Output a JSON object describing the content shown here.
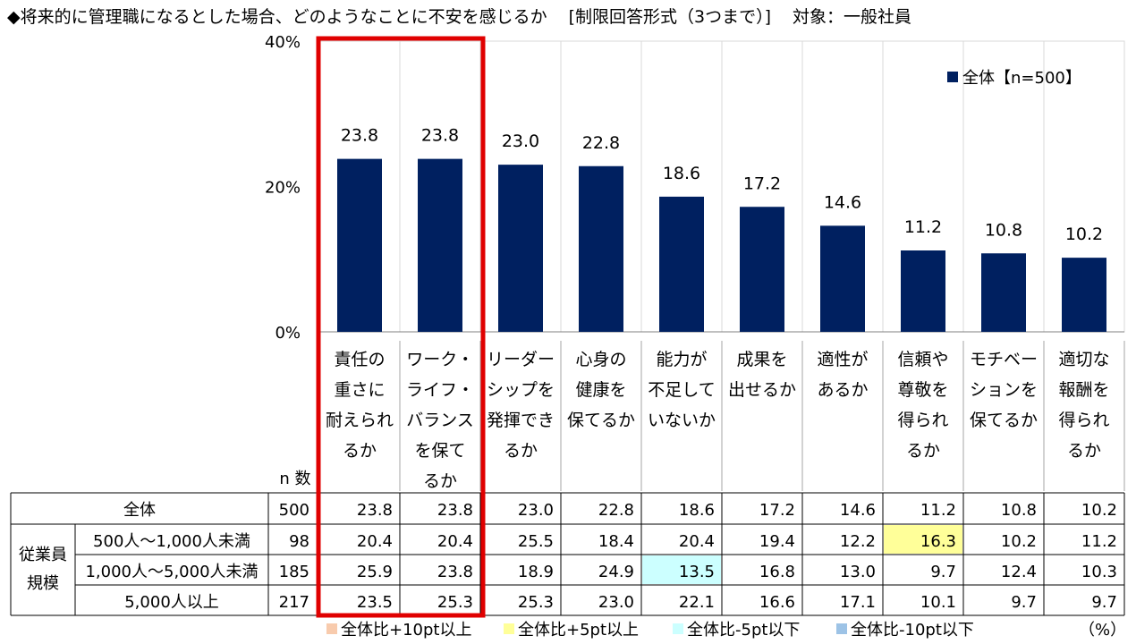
{
  "title": {
    "main": "◆将来的に管理職になるとした場合、どのようなことに不安を感じるか",
    "qtype": "[制限回答形式（3つまで）]",
    "target": "対象：一般社員"
  },
  "chart_data": {
    "type": "bar",
    "categories": [
      "責任の重さに耐えられるか",
      "ワーク・ライフ・バランスを保てるか",
      "リーダーシップを発揮できるか",
      "心身の健康を保てるか",
      "能力が不足していないか",
      "成果を出せるか",
      "適性があるか",
      "信頼や尊敬を得られるか",
      "モチベーションを保てるか",
      "適切な報酬を得られるか"
    ],
    "category_lines": [
      [
        "責任の",
        "重さに",
        "耐えられ",
        "るか"
      ],
      [
        "ワーク・",
        "ライフ・",
        "バランス",
        "を保て",
        "るか"
      ],
      [
        "リーダー",
        "シップを",
        "発揮でき",
        "るか"
      ],
      [
        "心身の",
        "健康を",
        "保てるか"
      ],
      [
        "能力が",
        "不足して",
        "いないか"
      ],
      [
        "成果を",
        "出せるか"
      ],
      [
        "適性が",
        "あるか"
      ],
      [
        "信頼や",
        "尊敬を",
        "得られ",
        "るか"
      ],
      [
        "モチベー",
        "ションを",
        "保てるか"
      ],
      [
        "適切な",
        "報酬を",
        "得られ",
        "るか"
      ]
    ],
    "series": [
      {
        "name": "全体【n=500】",
        "values": [
          23.8,
          23.8,
          23.0,
          22.8,
          18.6,
          17.2,
          14.6,
          11.2,
          10.8,
          10.2
        ]
      }
    ],
    "value_labels": [
      "23.8",
      "23.8",
      "23.0",
      "22.8",
      "18.6",
      "17.2",
      "14.6",
      "11.2",
      "10.8",
      "10.2"
    ],
    "ylim": [
      0,
      40
    ],
    "yticks": [
      "0%",
      "20%",
      "40%"
    ],
    "bar_color": "#002060",
    "legend": "top-right",
    "gridlines": "vertical",
    "highlight_columns": [
      0,
      1
    ],
    "highlight_color": "#e00000"
  },
  "table": {
    "n_header": "n 数",
    "group_label": [
      "従業員",
      "規模"
    ],
    "rows": [
      {
        "label": "全体",
        "n": "500",
        "values": [
          "23.8",
          "23.8",
          "23.0",
          "22.8",
          "18.6",
          "17.2",
          "14.6",
          "11.2",
          "10.8",
          "10.2"
        ],
        "hl": [
          null,
          null,
          null,
          null,
          null,
          null,
          null,
          null,
          null,
          null
        ]
      },
      {
        "label": "500人～1,000人未満",
        "n": "98",
        "values": [
          "20.4",
          "20.4",
          "25.5",
          "18.4",
          "20.4",
          "19.4",
          "12.2",
          "16.3",
          "10.2",
          "11.2"
        ],
        "hl": [
          null,
          null,
          null,
          null,
          null,
          null,
          null,
          "plus5",
          null,
          null
        ]
      },
      {
        "label": "1,000人～5,000人未満",
        "n": "185",
        "values": [
          "25.9",
          "23.8",
          "18.9",
          "24.9",
          "13.5",
          "16.8",
          "13.0",
          "9.7",
          "12.4",
          "10.3"
        ],
        "hl": [
          null,
          null,
          null,
          null,
          "minus5",
          null,
          null,
          null,
          null,
          null
        ]
      },
      {
        "label": "5,000人以上",
        "n": "217",
        "values": [
          "23.5",
          "25.3",
          "25.3",
          "23.0",
          "22.1",
          "16.6",
          "17.1",
          "10.1",
          "9.7",
          "9.7"
        ],
        "hl": [
          null,
          null,
          null,
          null,
          null,
          null,
          null,
          null,
          null,
          null
        ]
      }
    ]
  },
  "highlight_legend": [
    {
      "label": "全体比+10pt以上",
      "color": "#f8cbad"
    },
    {
      "label": "全体比+5pt以上",
      "color": "#ffff99"
    },
    {
      "label": "全体比-5pt以下",
      "color": "#ccffff"
    },
    {
      "label": "全体比-10pt以下",
      "color": "#9dc3e6"
    }
  ],
  "highlight_colors": {
    "plus10": "#f8cbad",
    "plus5": "#ffff99",
    "minus5": "#ccffff",
    "minus10": "#9dc3e6"
  },
  "unit_label": "（%）"
}
